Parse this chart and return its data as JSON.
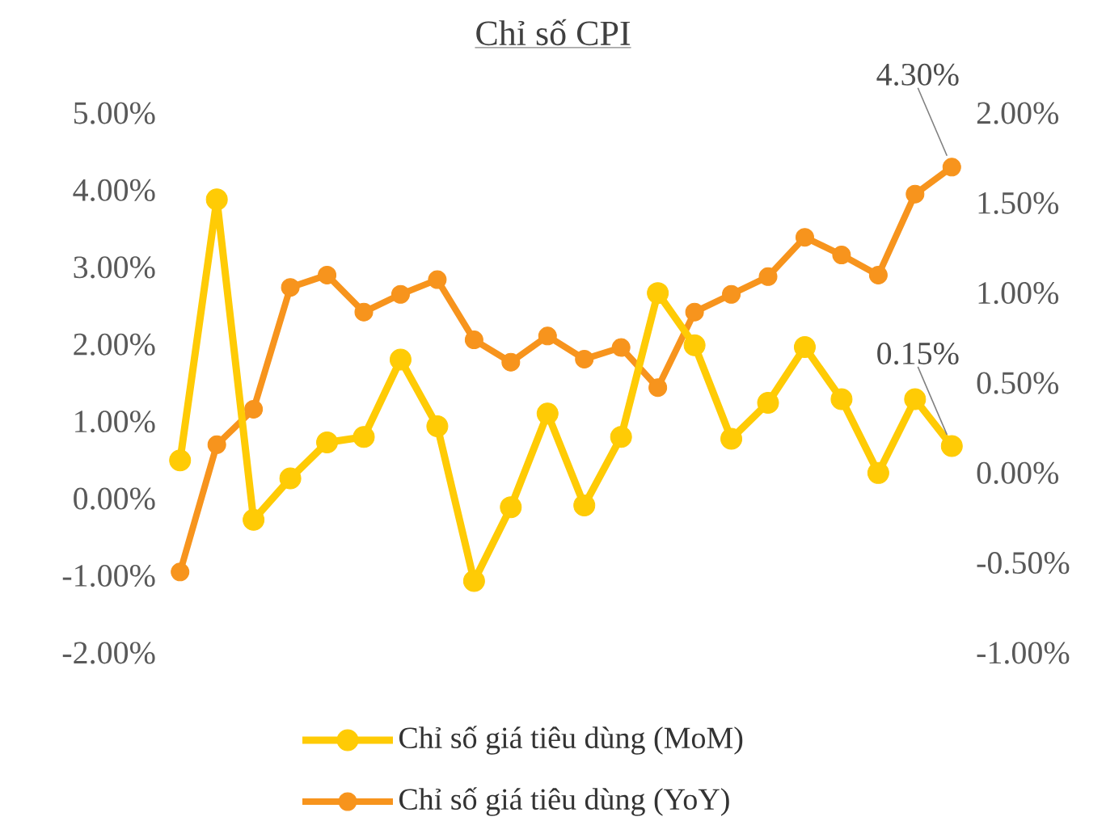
{
  "chart_data": {
    "type": "line",
    "title": "Chỉ số CPI",
    "categories": [
      null,
      null,
      null,
      null,
      null,
      null,
      null,
      null,
      null,
      null,
      null,
      null,
      null,
      null,
      null,
      null,
      null,
      null,
      null,
      null,
      null,
      null
    ],
    "series": [
      {
        "name": "Chỉ số giá tiêu dùng (MoM)",
        "color": "#ffcb05",
        "axis": "y2",
        "values": [
          0.07,
          1.52,
          -0.26,
          -0.03,
          0.17,
          0.2,
          0.63,
          0.26,
          -0.6,
          -0.19,
          0.33,
          -0.18,
          0.2,
          1.0,
          0.71,
          0.19,
          0.39,
          0.7,
          0.41,
          0.0,
          0.41,
          0.15
        ],
        "value_labels": [
          null,
          null,
          null,
          null,
          null,
          null,
          null,
          null,
          null,
          null,
          null,
          null,
          null,
          null,
          null,
          null,
          null,
          null,
          null,
          null,
          null,
          "0.15%"
        ]
      },
      {
        "name": "Chỉ số giá tiêu dùng (YoY)",
        "color": "#f7941d",
        "axis": "y",
        "values": [
          -0.95,
          0.7,
          1.16,
          2.74,
          2.9,
          2.42,
          2.65,
          2.84,
          2.06,
          1.77,
          2.11,
          1.81,
          1.96,
          1.44,
          2.42,
          2.65,
          2.88,
          3.39,
          3.16,
          2.9,
          3.95,
          4.3
        ],
        "value_labels": [
          null,
          null,
          null,
          null,
          null,
          null,
          null,
          null,
          null,
          null,
          null,
          null,
          null,
          null,
          null,
          null,
          null,
          null,
          null,
          null,
          null,
          "4.30%"
        ]
      }
    ],
    "ylim": [
      -2,
      5
    ],
    "yticks": [
      {
        "value": -2,
        "label": "-2.00%"
      },
      {
        "value": -1,
        "label": "-1.00%"
      },
      {
        "value": 0,
        "label": "0.00%"
      },
      {
        "value": 1,
        "label": "1.00%"
      },
      {
        "value": 2,
        "label": "2.00%"
      },
      {
        "value": 3,
        "label": "3.00%"
      },
      {
        "value": 4,
        "label": "4.00%"
      },
      {
        "value": 5,
        "label": "5.00%"
      }
    ],
    "y2lim": [
      -1,
      2
    ],
    "y2ticks": [
      {
        "value": -1,
        "label": "-1.00%"
      },
      {
        "value": -0.5,
        "label": "-0.50%"
      },
      {
        "value": 0,
        "label": "0.00%"
      },
      {
        "value": 0.5,
        "label": "0.50%"
      },
      {
        "value": 1,
        "label": "1.00%"
      },
      {
        "value": 1.5,
        "label": "1.50%"
      },
      {
        "value": 2,
        "label": "2.00%"
      }
    ],
    "grid": false,
    "legend": "bottom",
    "marker": "circle",
    "line_style": "solid"
  }
}
